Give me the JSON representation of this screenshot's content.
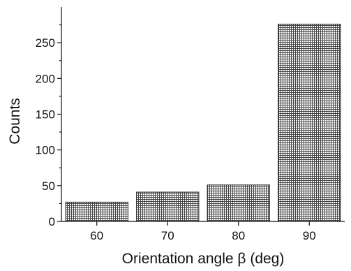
{
  "chart_data": {
    "type": "bar",
    "categories": [
      "60",
      "70",
      "80",
      "90"
    ],
    "values": [
      27,
      41,
      51,
      276
    ],
    "title": "",
    "xlabel": "Orientation angle β (deg)",
    "ylabel": "Counts",
    "ylim": [
      0,
      300
    ],
    "yticks": [
      "0",
      "50",
      "100",
      "150",
      "200",
      "250"
    ],
    "grid": false,
    "legend": "none",
    "bar_pattern": "crosshatch",
    "colors": {
      "bar_fill": "#ffffff",
      "hatch": "#444444",
      "axis": "#111111"
    }
  }
}
